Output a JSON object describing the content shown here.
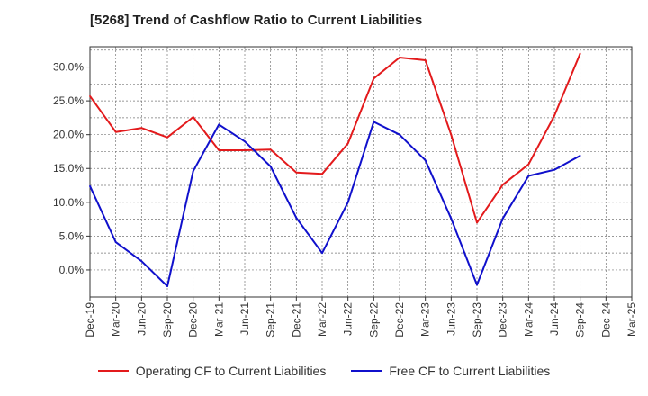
{
  "chart_data": {
    "type": "line",
    "title": "[5268]  Trend of Cashflow Ratio to Current Liabilities",
    "xlabel": "",
    "ylabel": "",
    "categories": [
      "Dec-19",
      "Mar-20",
      "Jun-20",
      "Sep-20",
      "Dec-20",
      "Mar-21",
      "Jun-21",
      "Sep-21",
      "Dec-21",
      "Mar-22",
      "Jun-22",
      "Sep-22",
      "Dec-22",
      "Mar-23",
      "Jun-23",
      "Sep-23",
      "Dec-23",
      "Mar-24",
      "Jun-24",
      "Sep-24",
      "Dec-24",
      "Mar-25"
    ],
    "y_ticks": [
      "0.0%",
      "5.0%",
      "10.0%",
      "15.0%",
      "20.0%",
      "25.0%",
      "30.0%"
    ],
    "ylim": [
      -4,
      33
    ],
    "grid": true,
    "legend_position": "bottom",
    "series": [
      {
        "name": "Operating CF to Current Liabilities",
        "color": "#e31a1c",
        "values": [
          25.7,
          20.4,
          21.0,
          19.6,
          22.6,
          17.7,
          17.7,
          17.8,
          14.4,
          14.2,
          18.7,
          28.3,
          31.4,
          31.0,
          20.0,
          7.0,
          12.6,
          15.6,
          22.8,
          32.0,
          null,
          null
        ]
      },
      {
        "name": "Free CF to Current Liabilities",
        "color": "#1010cc",
        "values": [
          12.4,
          4.1,
          1.3,
          -2.4,
          14.6,
          21.5,
          19.0,
          15.3,
          7.7,
          2.5,
          10.0,
          21.9,
          20.0,
          16.2,
          7.6,
          -2.2,
          7.6,
          13.9,
          14.8,
          16.9,
          null,
          null
        ]
      }
    ]
  }
}
